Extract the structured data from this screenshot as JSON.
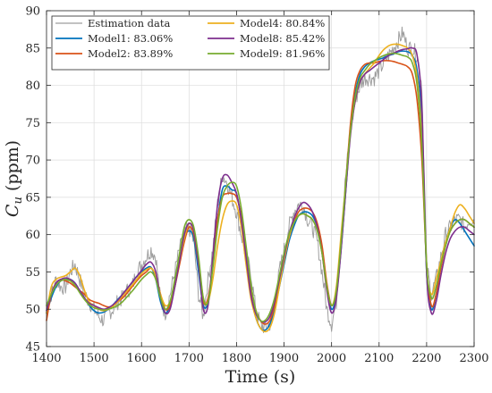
{
  "chart_data": {
    "type": "line",
    "title": "",
    "xlabel": "Time (s)",
    "ylabel": "C",
    "ylabel_sub": "u",
    "ylabel_unit": "(ppm)",
    "xlim": [
      1400,
      2300
    ],
    "ylim": [
      45,
      90
    ],
    "xticks": [
      1400,
      1500,
      1600,
      1700,
      1800,
      1900,
      2000,
      2100,
      2200,
      2300
    ],
    "yticks": [
      45,
      50,
      55,
      60,
      65,
      70,
      75,
      80,
      85,
      90
    ],
    "grid": true,
    "legend_position": "top-left",
    "series": [
      {
        "name": "Estimation data",
        "color": "#9e9e9e",
        "noisy": true,
        "x": [
          1400,
          1410,
          1420,
          1430,
          1440,
          1450,
          1460,
          1470,
          1480,
          1490,
          1500,
          1510,
          1520,
          1530,
          1540,
          1550,
          1560,
          1570,
          1580,
          1590,
          1600,
          1610,
          1620,
          1630,
          1640,
          1650,
          1660,
          1670,
          1680,
          1690,
          1700,
          1710,
          1720,
          1730,
          1740,
          1750,
          1760,
          1770,
          1780,
          1790,
          1800,
          1810,
          1820,
          1830,
          1840,
          1850,
          1860,
          1870,
          1880,
          1890,
          1900,
          1910,
          1920,
          1930,
          1940,
          1950,
          1960,
          1970,
          1980,
          1990,
          2000,
          2010,
          2020,
          2030,
          2040,
          2050,
          2060,
          2070,
          2080,
          2090,
          2100,
          2110,
          2120,
          2130,
          2140,
          2150,
          2160,
          2170,
          2180,
          2190,
          2200,
          2210,
          2220,
          2230,
          2240,
          2250,
          2260,
          2270,
          2280,
          2290,
          2300
        ],
        "y": [
          50,
          52,
          54,
          53,
          53,
          55,
          56,
          54,
          52,
          51,
          50,
          49,
          48.5,
          49.5,
          50,
          51,
          51.5,
          52.5,
          53,
          55,
          56,
          57,
          58,
          57,
          51,
          49.5,
          52,
          55,
          58,
          60,
          61,
          59,
          52,
          49,
          54,
          58,
          64,
          68,
          67,
          65,
          63,
          60,
          57,
          55,
          50,
          48,
          47.5,
          48,
          50,
          55,
          58,
          61,
          63,
          64,
          64,
          62,
          61,
          59,
          55,
          50,
          48,
          51,
          60,
          68,
          74,
          78,
          80,
          81,
          81,
          81,
          82,
          83,
          84,
          85,
          86,
          87,
          85,
          85,
          84,
          80,
          56,
          52,
          54,
          57,
          60,
          61,
          62,
          62,
          61,
          62,
          62
        ]
      },
      {
        "name": "Model1: 83.06%",
        "color": "#0072bd",
        "x": [
          1400,
          1410,
          1420,
          1430,
          1440,
          1450,
          1460,
          1470,
          1480,
          1490,
          1500,
          1510,
          1520,
          1530,
          1540,
          1550,
          1560,
          1570,
          1580,
          1590,
          1600,
          1610,
          1620,
          1630,
          1640,
          1650,
          1660,
          1670,
          1680,
          1690,
          1700,
          1710,
          1720,
          1730,
          1740,
          1750,
          1760,
          1770,
          1780,
          1790,
          1800,
          1810,
          1820,
          1830,
          1840,
          1850,
          1860,
          1870,
          1880,
          1890,
          1900,
          1910,
          1920,
          1930,
          1940,
          1950,
          1960,
          1970,
          1980,
          1990,
          2000,
          2010,
          2020,
          2030,
          2040,
          2050,
          2060,
          2070,
          2080,
          2090,
          2100,
          2110,
          2120,
          2130,
          2140,
          2150,
          2160,
          2170,
          2180,
          2190,
          2200,
          2210,
          2220,
          2230,
          2240,
          2250,
          2260,
          2270,
          2280,
          2290,
          2300
        ],
        "y": [
          49.5,
          51.5,
          53,
          53.8,
          54,
          54,
          53.5,
          52.5,
          51.5,
          50.5,
          49.8,
          49.5,
          49.6,
          50,
          50.6,
          51.3,
          52,
          52.8,
          53.6,
          54.4,
          55,
          55.5,
          55.6,
          54,
          51,
          49.5,
          50.5,
          53,
          56.5,
          59.5,
          60.5,
          59.5,
          55,
          50.5,
          51,
          56,
          62,
          66,
          66.5,
          66,
          65.5,
          62,
          57,
          52,
          49,
          47.5,
          47.2,
          48,
          50,
          53,
          56,
          59,
          61,
          62.5,
          63,
          63,
          62.5,
          61,
          58,
          53,
          50,
          52,
          58,
          66,
          74,
          79,
          81.5,
          82.5,
          83,
          83.3,
          83.5,
          83.7,
          84,
          84.2,
          84.5,
          84.6,
          84.5,
          84,
          82,
          75,
          55,
          50,
          52,
          56,
          59,
          61,
          62,
          61.5,
          60.5,
          59.5,
          58.5
        ]
      },
      {
        "name": "Model2: 83.89%",
        "color": "#d95319",
        "x": [
          1400,
          1410,
          1420,
          1430,
          1440,
          1450,
          1460,
          1470,
          1480,
          1490,
          1500,
          1510,
          1520,
          1530,
          1540,
          1550,
          1560,
          1570,
          1580,
          1590,
          1600,
          1610,
          1620,
          1630,
          1640,
          1650,
          1660,
          1670,
          1680,
          1690,
          1700,
          1710,
          1720,
          1730,
          1740,
          1750,
          1760,
          1770,
          1780,
          1790,
          1800,
          1810,
          1820,
          1830,
          1840,
          1850,
          1860,
          1870,
          1880,
          1890,
          1900,
          1910,
          1920,
          1930,
          1940,
          1950,
          1960,
          1970,
          1980,
          1990,
          2000,
          2010,
          2020,
          2030,
          2040,
          2050,
          2060,
          2070,
          2080,
          2090,
          2100,
          2110,
          2120,
          2130,
          2140,
          2150,
          2160,
          2170,
          2180,
          2190,
          2200,
          2210,
          2220,
          2230,
          2240,
          2250,
          2260,
          2270,
          2280,
          2290,
          2300
        ],
        "y": [
          48.5,
          52,
          53.5,
          54,
          53.8,
          53.5,
          53,
          52.5,
          52,
          51.3,
          51,
          50.8,
          50.5,
          50.3,
          50.5,
          51,
          51.5,
          52.2,
          53,
          53.8,
          54.5,
          55,
          55.5,
          54.5,
          52,
          50,
          50.5,
          53,
          56,
          59,
          61,
          60,
          56,
          51,
          51.5,
          56,
          62,
          65,
          65.5,
          65.5,
          65,
          62.5,
          58,
          53,
          50,
          48.5,
          48,
          48.5,
          50.5,
          53.5,
          56.5,
          59.5,
          61.5,
          63,
          63.5,
          63.5,
          63,
          61.5,
          58.5,
          53.5,
          50.5,
          52.5,
          59,
          67,
          75,
          80,
          82,
          82.8,
          83,
          83,
          83.2,
          83.3,
          83.3,
          83.2,
          83,
          82.8,
          82.5,
          81.5,
          78,
          70,
          56,
          50.5,
          52,
          55.5,
          58.5,
          60.5,
          61.5,
          62,
          62,
          61.5,
          61
        ]
      },
      {
        "name": "Model4: 80.84%",
        "color": "#edb120",
        "x": [
          1400,
          1410,
          1420,
          1430,
          1440,
          1450,
          1460,
          1470,
          1480,
          1490,
          1500,
          1510,
          1520,
          1530,
          1540,
          1550,
          1560,
          1570,
          1580,
          1590,
          1600,
          1610,
          1620,
          1630,
          1640,
          1650,
          1660,
          1670,
          1680,
          1690,
          1700,
          1710,
          1720,
          1730,
          1740,
          1750,
          1760,
          1770,
          1780,
          1790,
          1800,
          1810,
          1820,
          1830,
          1840,
          1850,
          1860,
          1870,
          1880,
          1890,
          1900,
          1910,
          1920,
          1930,
          1940,
          1950,
          1960,
          1970,
          1980,
          1990,
          2000,
          2010,
          2020,
          2030,
          2040,
          2050,
          2060,
          2070,
          2080,
          2090,
          2100,
          2110,
          2120,
          2130,
          2140,
          2150,
          2160,
          2170,
          2180,
          2190,
          2200,
          2210,
          2220,
          2230,
          2240,
          2250,
          2260,
          2270,
          2280,
          2290,
          2300
        ],
        "y": [
          49.5,
          53,
          54,
          54.3,
          54.5,
          55,
          55.5,
          54.5,
          52.5,
          51,
          50.5,
          50,
          49.8,
          50,
          50.4,
          51,
          51.8,
          52.5,
          53.2,
          54,
          54.8,
          55.3,
          55.5,
          54.5,
          52,
          50.5,
          51,
          53.5,
          56.5,
          59.5,
          61.5,
          60.5,
          56.5,
          51.5,
          51,
          54,
          58.5,
          62,
          64,
          64.5,
          64,
          61,
          56,
          51.5,
          49,
          47.5,
          47,
          47.5,
          49.5,
          53,
          56.5,
          59.5,
          61.5,
          62.5,
          62.8,
          62.5,
          62,
          60.5,
          57.5,
          53,
          50.5,
          53,
          60,
          67,
          74,
          78,
          80.5,
          81.5,
          82.3,
          83,
          84,
          84.8,
          85.3,
          85.5,
          85.5,
          85.3,
          85,
          84,
          81,
          73,
          56,
          52,
          54,
          56.5,
          59,
          61,
          63,
          64,
          63.5,
          62.5,
          61.5
        ]
      },
      {
        "name": "Model8: 85.42%",
        "color": "#7e2f8e",
        "x": [
          1400,
          1410,
          1420,
          1430,
          1440,
          1450,
          1460,
          1470,
          1480,
          1490,
          1500,
          1510,
          1520,
          1530,
          1540,
          1550,
          1560,
          1570,
          1580,
          1590,
          1600,
          1610,
          1620,
          1630,
          1640,
          1650,
          1660,
          1670,
          1680,
          1690,
          1700,
          1710,
          1720,
          1730,
          1740,
          1750,
          1760,
          1770,
          1780,
          1790,
          1800,
          1810,
          1820,
          1830,
          1840,
          1850,
          1860,
          1870,
          1880,
          1890,
          1900,
          1910,
          1920,
          1930,
          1940,
          1950,
          1960,
          1970,
          1980,
          1990,
          2000,
          2010,
          2020,
          2030,
          2040,
          2050,
          2060,
          2070,
          2080,
          2090,
          2100,
          2110,
          2120,
          2130,
          2140,
          2150,
          2160,
          2170,
          2180,
          2190,
          2200,
          2210,
          2220,
          2230,
          2240,
          2250,
          2260,
          2270,
          2280,
          2290,
          2300
        ],
        "y": [
          49.8,
          52,
          53.5,
          54,
          54.2,
          54,
          53.5,
          52.5,
          51.5,
          50.8,
          50.5,
          50.2,
          50,
          50.2,
          50.6,
          51.2,
          52,
          52.8,
          53.6,
          54.4,
          55.2,
          56,
          56.3,
          55,
          51.5,
          49.5,
          50,
          53,
          56.5,
          60,
          61.5,
          60.5,
          56,
          50,
          50.5,
          57,
          64,
          67.5,
          68,
          67,
          65.5,
          62,
          57,
          52,
          49.5,
          48.5,
          48.3,
          49,
          51,
          54,
          57,
          60,
          62,
          63.5,
          64.3,
          64,
          63,
          61,
          57.5,
          52.5,
          49.5,
          51.5,
          58,
          66,
          73.5,
          78,
          80.5,
          81.5,
          82,
          82.5,
          83,
          83.5,
          84,
          84.3,
          84.6,
          84.8,
          84.9,
          85,
          84,
          77,
          55,
          49.5,
          51,
          54.5,
          57.5,
          59.5,
          60.5,
          61,
          61,
          60.5,
          60
        ]
      },
      {
        "name": "Model9: 81.96%",
        "color": "#77ac30",
        "x": [
          1400,
          1410,
          1420,
          1430,
          1440,
          1450,
          1460,
          1470,
          1480,
          1490,
          1500,
          1510,
          1520,
          1530,
          1540,
          1550,
          1560,
          1570,
          1580,
          1590,
          1600,
          1610,
          1620,
          1630,
          1640,
          1650,
          1660,
          1670,
          1680,
          1690,
          1700,
          1710,
          1720,
          1730,
          1740,
          1750,
          1760,
          1770,
          1780,
          1790,
          1800,
          1810,
          1820,
          1830,
          1840,
          1850,
          1860,
          1870,
          1880,
          1890,
          1900,
          1910,
          1920,
          1930,
          1940,
          1950,
          1960,
          1970,
          1980,
          1990,
          2000,
          2010,
          2020,
          2030,
          2040,
          2050,
          2060,
          2070,
          2080,
          2090,
          2100,
          2110,
          2120,
          2130,
          2140,
          2150,
          2160,
          2170,
          2180,
          2190,
          2200,
          2210,
          2220,
          2230,
          2240,
          2250,
          2260,
          2270,
          2280,
          2290,
          2300
        ],
        "y": [
          50.5,
          52,
          53.2,
          53.8,
          54,
          53.8,
          53.2,
          52.2,
          51.3,
          50.6,
          50.2,
          50,
          49.9,
          50,
          50.2,
          50.5,
          51,
          51.7,
          52.4,
          53.2,
          54,
          54.6,
          55,
          54,
          51.5,
          50,
          51,
          54,
          57.5,
          61,
          62,
          61,
          57,
          51.5,
          51,
          55.5,
          61,
          65,
          66.5,
          67,
          66.5,
          63.5,
          58.5,
          53.5,
          50,
          48.5,
          48.5,
          49.5,
          51.5,
          54.5,
          57.5,
          60,
          61.5,
          62.5,
          62.8,
          62.5,
          62,
          60.5,
          57.5,
          53,
          50.5,
          52.5,
          59,
          67,
          74,
          78.5,
          81,
          82,
          82.8,
          83.3,
          83.7,
          84,
          84.2,
          84.3,
          84.2,
          84,
          83.8,
          83,
          80,
          72,
          56,
          51.5,
          53,
          56,
          58.5,
          60.5,
          61.5,
          62,
          62,
          61.5,
          61
        ]
      }
    ]
  }
}
